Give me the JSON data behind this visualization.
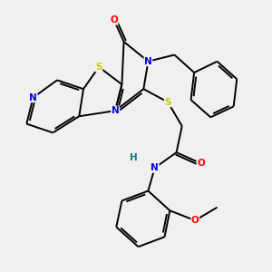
{
  "bg_color": "#f0f0f0",
  "atom_colors": {
    "C": "#000000",
    "N": "#0000ee",
    "O": "#ff0000",
    "S": "#cccc00",
    "H": "#008080"
  },
  "bond_color": "#000000",
  "bond_width": 1.4,
  "figsize": [
    3.0,
    3.0
  ],
  "dpi": 100
}
